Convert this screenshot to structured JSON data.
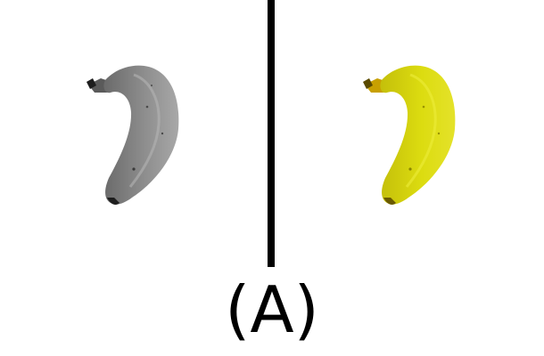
{
  "caption": "(A)",
  "panels": [
    {
      "name": "grayscale-banana",
      "colors": {
        "body": "#8e8e8e",
        "shade": "#6a6a6a",
        "light": "#b4b4b4",
        "stem": "#5a5a5a",
        "tip": "#1e1e1e"
      }
    },
    {
      "name": "yellow-banana",
      "colors": {
        "body": "#dcdc10",
        "shade": "#c4bf0a",
        "light": "#ecec3a",
        "stem": "#c8a000",
        "tip": "#5a4a00"
      }
    }
  ],
  "divider_color": "#000000"
}
